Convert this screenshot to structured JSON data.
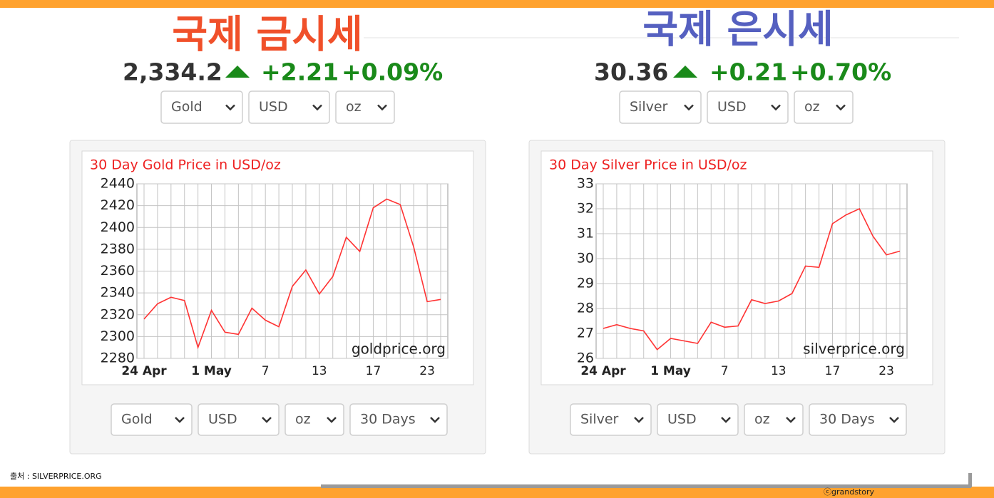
{
  "gold": {
    "heading": "국제 금시세",
    "price": "2,334.2",
    "change": "+2.21",
    "change_pct": "+0.09%",
    "selectors": [
      "Gold",
      "USD",
      "oz"
    ],
    "bottom_selectors": [
      "Gold",
      "USD",
      "oz",
      "30 Days"
    ]
  },
  "silver": {
    "heading": "국제 은시세",
    "price": "30.36",
    "change": "+0.21",
    "change_pct": "+0.70%",
    "selectors": [
      "Silver",
      "USD",
      "oz"
    ],
    "bottom_selectors": [
      "Silver",
      "USD",
      "oz",
      "30 Days"
    ]
  },
  "footer": {
    "source": "출처 : SILVERPRICE.ORG",
    "credit": "ⓒgrandstory"
  },
  "chart_data": [
    {
      "type": "line",
      "title": "30 Day Gold Price in USD/oz",
      "watermark": "goldprice.org",
      "color": "#ff3333",
      "grid": true,
      "categories": [
        "24 Apr",
        null,
        null,
        null,
        null,
        "1 May",
        null,
        null,
        null,
        "7",
        null,
        null,
        null,
        "13",
        null,
        null,
        null,
        "17",
        null,
        null,
        null,
        "23",
        null
      ],
      "values": [
        2316,
        2330,
        2336,
        2333,
        2290,
        2324,
        2304,
        2302,
        2326,
        2315,
        2309,
        2346,
        2361,
        2339,
        2355,
        2391,
        2378,
        2418,
        2426,
        2421,
        2382,
        2332,
        2334
      ],
      "ylim": [
        2280,
        2440
      ],
      "yticks": [
        2280,
        2300,
        2320,
        2340,
        2360,
        2380,
        2400,
        2420,
        2440
      ]
    },
    {
      "type": "line",
      "title": "30 Day Silver Price in USD/oz",
      "watermark": "silverprice.org",
      "color": "#ff3333",
      "grid": true,
      "categories": [
        "24 Apr",
        null,
        null,
        null,
        null,
        "1 May",
        null,
        null,
        null,
        "7",
        null,
        null,
        null,
        "13",
        null,
        null,
        null,
        "17",
        null,
        null,
        null,
        "23",
        null
      ],
      "values": [
        27.2,
        27.35,
        27.2,
        27.1,
        26.35,
        26.8,
        26.7,
        26.6,
        27.45,
        27.25,
        27.3,
        28.35,
        28.2,
        28.3,
        28.6,
        29.7,
        29.65,
        31.4,
        31.75,
        32.0,
        30.9,
        30.15,
        30.3
      ],
      "ylim": [
        26,
        33
      ],
      "yticks": [
        26,
        27,
        28,
        29,
        30,
        31,
        32,
        33
      ]
    }
  ]
}
